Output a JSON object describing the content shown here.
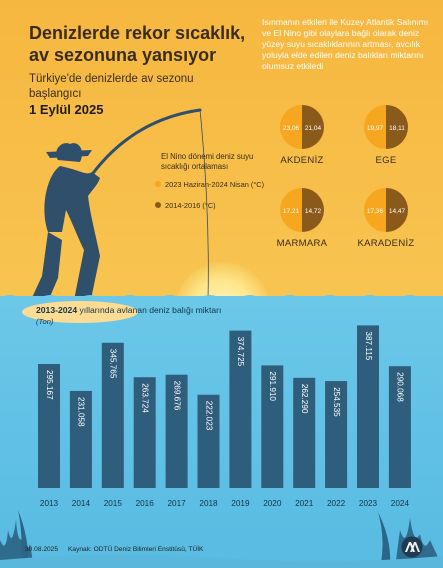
{
  "header": {
    "title_line1": "Denizlerde rekor sıcaklık,",
    "title_line2": "av sezonuna yansıyor",
    "subtitle": "Türkiye'de denizlerde av sezonu başlangıcı",
    "date": "1 Eylül 2025"
  },
  "intro": "Isınmanın etkileri ile Kuzey Atlantik Salınımı ve El Nino gibi olaylara bağlı olarak deniz yüzey suyu sıcaklıklarının artması, avcılık yoluyla elde edilen deniz balıkları miktarını olumsuz etkiledi",
  "legend": {
    "title": "El Nino dönemi deniz suyu sıcaklığı ortalaması",
    "items": [
      {
        "label": "2023 Haziran-2024 Nisan (°C)",
        "color": "#f6a61f"
      },
      {
        "label": "2014-2016 (°C)",
        "color": "#8a5a1b"
      }
    ]
  },
  "regions": [
    {
      "name": "AKDENİZ",
      "v2023": "23,06",
      "v2014": "21,04"
    },
    {
      "name": "EGE",
      "v2023": "19,97",
      "v2014": "18,11"
    },
    {
      "name": "MARMARA",
      "v2023": "17,21",
      "v2014": "14,72"
    },
    {
      "name": "KARADENİZ",
      "v2023": "17,36",
      "v2014": "14,47"
    }
  ],
  "colors": {
    "pie_light": "#f6a61f",
    "pie_dark": "#8a5a1b",
    "bar": "#2f5d7c",
    "sea": "#63c2e6"
  },
  "chart_data": {
    "type": "bar",
    "title_bold": "2013-2024",
    "title_rest": " yıllarında avlanan deniz balığı miktarı",
    "unit": "(Ton)",
    "categories": [
      "2013",
      "2014",
      "2015",
      "2016",
      "2017",
      "2018",
      "2019",
      "2020",
      "2021",
      "2022",
      "2023",
      "2024"
    ],
    "values": [
      295167,
      231058,
      345765,
      263724,
      269676,
      222023,
      374725,
      291910,
      262290,
      254535,
      387115,
      290068
    ],
    "labels": [
      "295.167",
      "231.058",
      "345.765",
      "263.724",
      "269.676",
      "222.023",
      "374.725",
      "291.910",
      "262.290",
      "254.535",
      "387.115",
      "290.068"
    ],
    "ylim": [
      0,
      400000
    ]
  },
  "footer": {
    "date": "30.08.2025",
    "source": "Kaynak: ODTÜ Deniz Bilimleri Enstitüsü, TÜİK",
    "logo_text": "AA"
  }
}
